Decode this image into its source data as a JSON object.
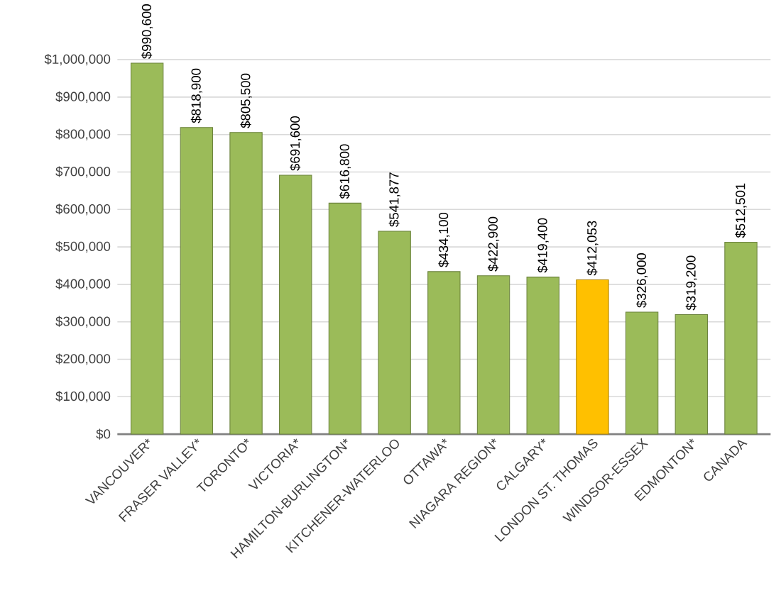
{
  "chart_data": {
    "type": "bar",
    "categories": [
      "VANCOUVER*",
      "FRASER VALLEY*",
      "TORONTO*",
      "VICTORIA*",
      "HAMILTON-BURLINGTON*",
      "KITCHENER-WATERLOO",
      "OTTAWA*",
      "NIAGARA REGION*",
      "CALGARY*",
      "LONDON ST. THOMAS",
      "WINDSOR-ESSEX",
      "EDMONTON*",
      "CANADA"
    ],
    "values": [
      990600,
      818900,
      805500,
      691600,
      616800,
      541877,
      434100,
      422900,
      419400,
      412053,
      326000,
      319200,
      512501
    ],
    "value_labels": [
      "$990,600",
      "$818,900",
      "$805,500",
      "$691,600",
      "$616,800",
      "$541,877",
      "$434,100",
      "$422,900",
      "$419,400",
      "$412,053",
      "$326,000",
      "$319,200",
      "$512,501"
    ],
    "colors": [
      "#9bbb59",
      "#9bbb59",
      "#9bbb59",
      "#9bbb59",
      "#9bbb59",
      "#9bbb59",
      "#9bbb59",
      "#9bbb59",
      "#9bbb59",
      "#ffc000",
      "#9bbb59",
      "#9bbb59",
      "#9bbb59"
    ],
    "ylim": [
      0,
      1000000
    ],
    "yticks": [
      {
        "value": 0,
        "label": "$0"
      },
      {
        "value": 100000,
        "label": "$100,000"
      },
      {
        "value": 200000,
        "label": "$200,000"
      },
      {
        "value": 300000,
        "label": "$300,000"
      },
      {
        "value": 400000,
        "label": "$400,000"
      },
      {
        "value": 500000,
        "label": "$500,000"
      },
      {
        "value": 600000,
        "label": "$600,000"
      },
      {
        "value": 700000,
        "label": "$700,000"
      },
      {
        "value": 800000,
        "label": "$800,000"
      },
      {
        "value": 900000,
        "label": "$900,000"
      },
      {
        "value": 1000000,
        "label": "$1,000,000"
      }
    ],
    "grid": "y"
  }
}
